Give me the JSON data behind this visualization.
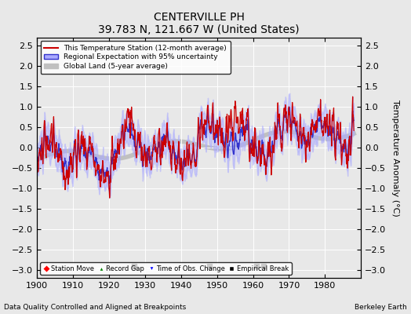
{
  "title": "CENTERVILLE PH",
  "subtitle": "39.783 N, 121.667 W (United States)",
  "ylabel": "Temperature Anomaly (°C)",
  "xlabel_note": "Data Quality Controlled and Aligned at Breakpoints",
  "credit": "Berkeley Earth",
  "xlim": [
    1900,
    1990
  ],
  "ylim": [
    -3.2,
    2.7
  ],
  "yticks": [
    -3,
    -2.5,
    -2,
    -1.5,
    -1,
    -0.5,
    0,
    0.5,
    1,
    1.5,
    2,
    2.5
  ],
  "xticks": [
    1900,
    1910,
    1920,
    1930,
    1940,
    1950,
    1960,
    1970,
    1980
  ],
  "bg_color": "#e8e8e8",
  "grid_color": "#ffffff",
  "empirical_breaks": [
    1927,
    1948,
    1961,
    1963
  ],
  "station_moves": [],
  "record_gaps": [],
  "obs_changes": []
}
